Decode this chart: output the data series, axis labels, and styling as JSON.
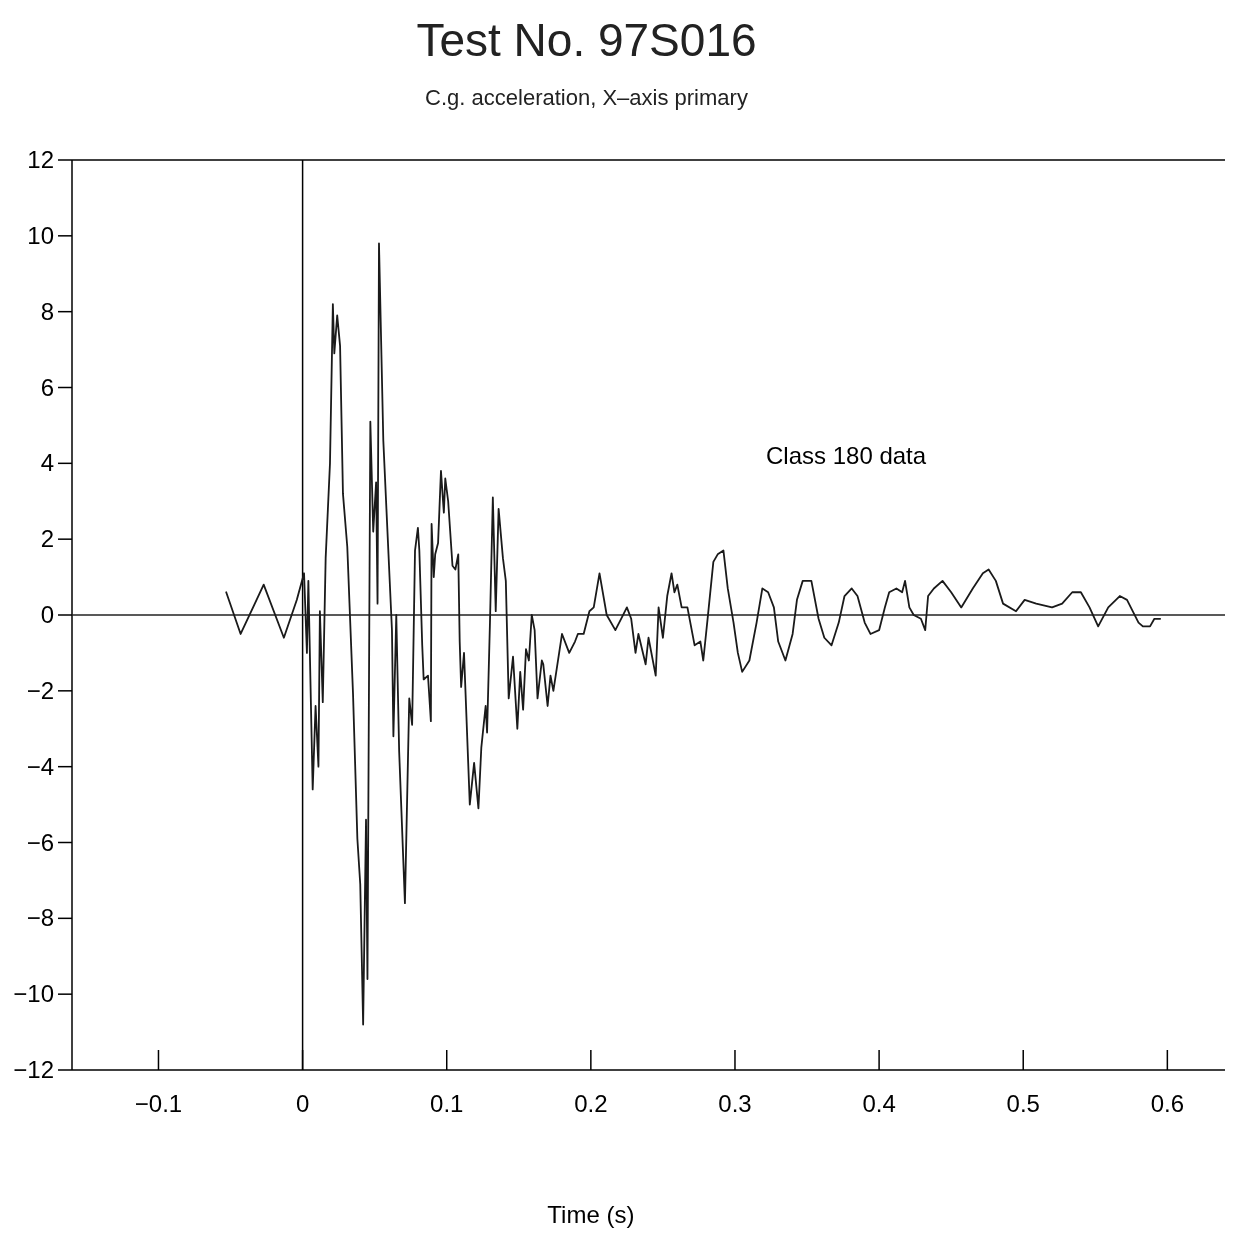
{
  "chart_data": {
    "type": "line",
    "title": "Test No. 97S016",
    "subtitle": "C.g. acceleration, X–axis primary",
    "xlabel": "Time (s)",
    "annotations": [
      "Class 180 data"
    ],
    "xlim": [
      -0.16,
      0.64
    ],
    "xticks": [
      -0.1,
      0,
      0.1,
      0.2,
      0.3,
      0.4,
      0.5,
      0.6
    ],
    "ylim": [
      -12,
      12
    ],
    "yticks": [
      -12,
      -10,
      -8,
      -6,
      -4,
      -2,
      0,
      2,
      4,
      6,
      8,
      10,
      12
    ],
    "grid": false,
    "marker": "none",
    "line_style": "solid",
    "ref_lines": [
      {
        "axis": "x",
        "value": 0,
        "color": "#000000"
      },
      {
        "axis": "y",
        "value": 0,
        "color": "#222222"
      }
    ],
    "series": [
      {
        "color": "#1a1a1a",
        "x": [
          -0.053,
          -0.043,
          -0.027,
          -0.013,
          -0.004,
          0.001,
          0.003,
          0.004,
          0.007,
          0.009,
          0.011,
          0.012,
          0.014,
          0.016,
          0.019,
          0.021,
          0.022,
          0.024,
          0.026,
          0.028,
          0.031,
          0.035,
          0.038,
          0.04,
          0.042,
          0.044,
          0.045,
          0.047,
          0.049,
          0.051,
          0.052,
          0.053,
          0.056,
          0.062,
          0.063,
          0.065,
          0.067,
          0.071,
          0.074,
          0.076,
          0.078,
          0.08,
          0.081,
          0.083,
          0.084,
          0.087,
          0.089,
          0.0895,
          0.091,
          0.092,
          0.094,
          0.096,
          0.098,
          0.099,
          0.101,
          0.104,
          0.106,
          0.108,
          0.109,
          0.11,
          0.112,
          0.116,
          0.119,
          0.122,
          0.124,
          0.127,
          0.128,
          0.13,
          0.132,
          0.134,
          0.136,
          0.139,
          0.141,
          0.143,
          0.146,
          0.149,
          0.151,
          0.153,
          0.155,
          0.157,
          0.159,
          0.161,
          0.163,
          0.166,
          0.167,
          0.17,
          0.172,
          0.174,
          0.18,
          0.183,
          0.185,
          0.189,
          0.191,
          0.195,
          0.199,
          0.202,
          0.206,
          0.211,
          0.217,
          0.221,
          0.225,
          0.228,
          0.231,
          0.233,
          0.238,
          0.24,
          0.245,
          0.247,
          0.25,
          0.253,
          0.256,
          0.258,
          0.26,
          0.263,
          0.267,
          0.272,
          0.276,
          0.278,
          0.281,
          0.285,
          0.288,
          0.292,
          0.295,
          0.299,
          0.302,
          0.305,
          0.31,
          0.315,
          0.319,
          0.323,
          0.327,
          0.33,
          0.335,
          0.34,
          0.343,
          0.347,
          0.353,
          0.358,
          0.362,
          0.367,
          0.372,
          0.376,
          0.381,
          0.385,
          0.39,
          0.394,
          0.4,
          0.404,
          0.407,
          0.412,
          0.416,
          0.418,
          0.421,
          0.424,
          0.429,
          0.432,
          0.434,
          0.438,
          0.444,
          0.45,
          0.457,
          0.465,
          0.472,
          0.476,
          0.481,
          0.486,
          0.495,
          0.501,
          0.509,
          0.52,
          0.527,
          0.534,
          0.54,
          0.546,
          0.552,
          0.559,
          0.567,
          0.572,
          0.58,
          0.583,
          0.588,
          0.591,
          0.595
        ],
        "values": [
          0.6,
          -0.5,
          0.8,
          -0.6,
          0.4,
          1.1,
          -1.0,
          0.9,
          -4.6,
          -2.4,
          -4.0,
          0.1,
          -2.3,
          1.5,
          4.0,
          8.2,
          6.9,
          7.9,
          7.1,
          3.2,
          1.8,
          -2.1,
          -5.9,
          -7.1,
          -10.8,
          -5.4,
          -9.6,
          5.1,
          2.2,
          3.5,
          0.3,
          9.8,
          4.6,
          -0.4,
          -3.2,
          0.0,
          -3.6,
          -7.6,
          -2.2,
          -2.9,
          1.7,
          2.3,
          1.7,
          -0.8,
          -1.7,
          -1.6,
          -2.8,
          2.4,
          1.0,
          1.6,
          1.9,
          3.8,
          2.7,
          3.6,
          3.0,
          1.3,
          1.2,
          1.6,
          -0.7,
          -1.9,
          -1.0,
          -5.0,
          -3.9,
          -5.1,
          -3.5,
          -2.4,
          -3.1,
          -0.2,
          3.1,
          0.1,
          2.8,
          1.5,
          0.9,
          -2.2,
          -1.1,
          -3.0,
          -1.5,
          -2.5,
          -0.9,
          -1.2,
          0.0,
          -0.4,
          -2.2,
          -1.2,
          -1.3,
          -2.4,
          -1.6,
          -2.0,
          -0.5,
          -0.8,
          -1.0,
          -0.7,
          -0.5,
          -0.5,
          0.1,
          0.2,
          1.1,
          0.0,
          -0.4,
          -0.1,
          0.2,
          -0.1,
          -1.0,
          -0.5,
          -1.3,
          -0.6,
          -1.6,
          0.2,
          -0.6,
          0.5,
          1.1,
          0.6,
          0.8,
          0.2,
          0.2,
          -0.8,
          -0.7,
          -1.2,
          -0.1,
          1.4,
          1.6,
          1.7,
          0.7,
          -0.2,
          -1.0,
          -1.5,
          -1.2,
          -0.2,
          0.7,
          0.6,
          0.2,
          -0.7,
          -1.2,
          -0.5,
          0.4,
          0.9,
          0.9,
          -0.1,
          -0.6,
          -0.8,
          -0.2,
          0.5,
          0.7,
          0.5,
          -0.2,
          -0.5,
          -0.4,
          0.2,
          0.6,
          0.7,
          0.6,
          0.9,
          0.2,
          0.0,
          -0.1,
          -0.4,
          0.5,
          0.7,
          0.9,
          0.6,
          0.2,
          0.7,
          1.1,
          1.2,
          0.9,
          0.3,
          0.1,
          0.4,
          0.3,
          0.2,
          0.3,
          0.6,
          0.6,
          0.2,
          -0.3,
          0.2,
          0.5,
          0.4,
          -0.2,
          -0.3,
          -0.3,
          -0.1,
          -0.1
        ]
      }
    ]
  }
}
